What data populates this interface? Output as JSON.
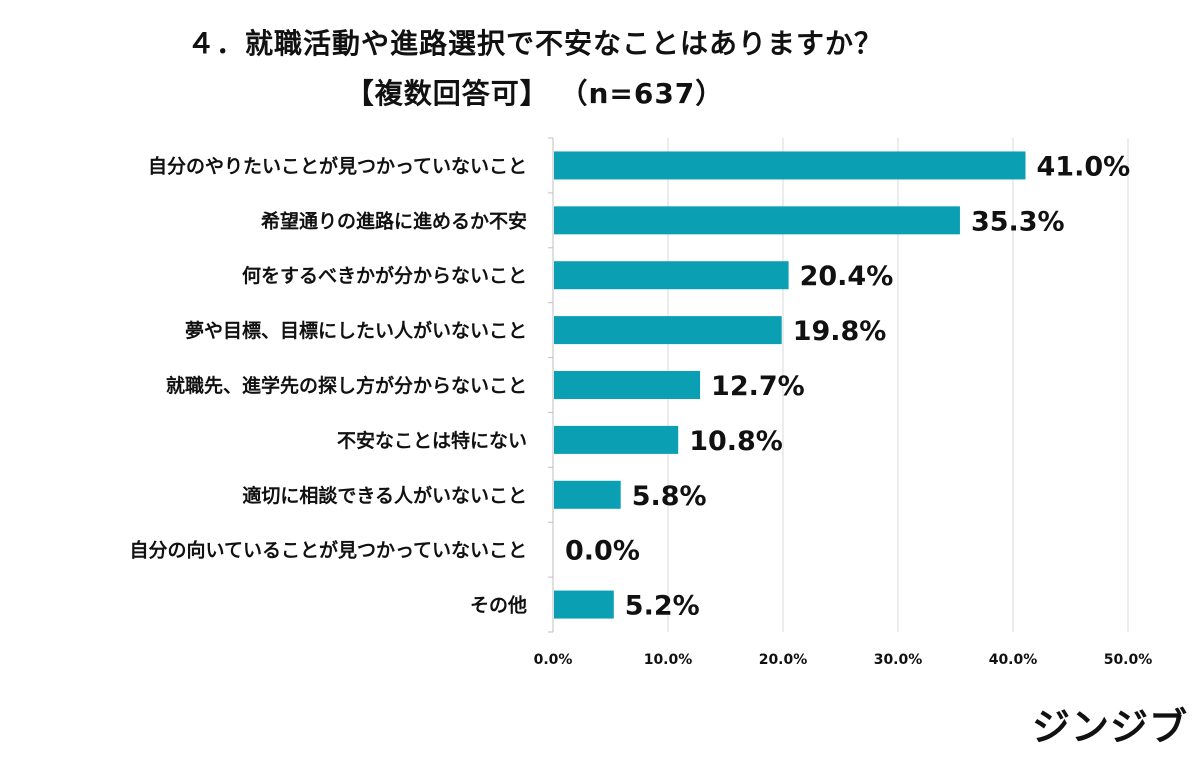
{
  "header": {
    "title_line1": "４．就職活動や進路選択で不安なことはありますか？",
    "title_line2": "【複数回答可】 （n=637）"
  },
  "chart_data": {
    "type": "bar",
    "orientation": "horizontal",
    "title": "４．就職活動や進路選択で不安なことはありますか？",
    "subtitle": "【複数回答可】 （n=637）",
    "categories": [
      "自分のやりたいことが見つかっていないこと",
      "希望通りの進路に進めるか不安",
      "何をするべきかが分からないこと",
      "夢や目標、目標にしたい人がいないこと",
      "就職先、進学先の探し方が分からないこと",
      "不安なことは特にない",
      "適切に相談できる人がいないこと",
      "自分の向いていることが見つかっていないこと",
      "その他"
    ],
    "values": [
      41.0,
      35.3,
      20.4,
      19.8,
      12.7,
      10.8,
      5.8,
      0.0,
      5.2
    ],
    "value_labels": [
      "41.0%",
      "35.3%",
      "20.4%",
      "19.8%",
      "12.7%",
      "10.8%",
      "5.8%",
      "0.0%",
      "5.2%"
    ],
    "xlim": [
      0,
      50
    ],
    "xticks": [
      "0.0%",
      "10.0%",
      "20.0%",
      "30.0%",
      "40.0%",
      "50.0%"
    ],
    "xlabel": "",
    "ylabel": "",
    "grid": true,
    "bar_color": "#0b9fb3"
  },
  "footer": {
    "logo_text": "ジンジブ"
  }
}
